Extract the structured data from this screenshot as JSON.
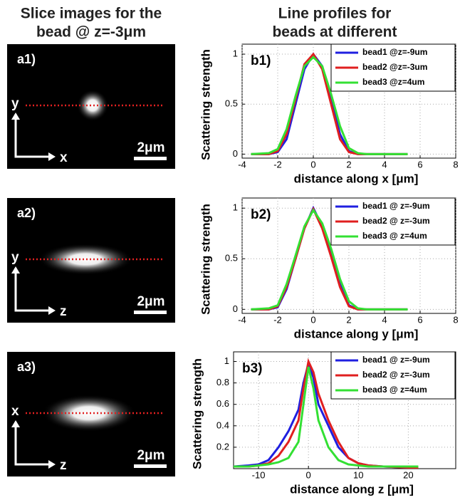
{
  "left_title": [
    "Slice images for the",
    "bead @ z=-3μm"
  ],
  "right_title": [
    "Line profiles for",
    "beads at different"
  ],
  "images": [
    {
      "label": "a1)",
      "v_axis": "y",
      "h_axis": "x",
      "scale": "2μm"
    },
    {
      "label": "a2)",
      "v_axis": "y",
      "h_axis": "z",
      "scale": "2μm"
    },
    {
      "label": "a3)",
      "v_axis": "x",
      "h_axis": "z",
      "scale": "2μm"
    }
  ],
  "chart_data": [
    {
      "type": "line",
      "panel_label": "b1)",
      "x_label": "distance along x [μm]",
      "y_label": "Scattering strength",
      "xlim": [
        -4,
        8
      ],
      "xticks": [
        -4,
        -2,
        0,
        2,
        4,
        6,
        8
      ],
      "ylim": [
        -0.04,
        1.1
      ],
      "yticks": [
        0,
        0.5,
        1
      ],
      "grid": true,
      "x": [
        -3.5,
        -2.5,
        -2,
        -1.5,
        -1,
        -0.5,
        0,
        0.5,
        1,
        1.5,
        2,
        2.5,
        3,
        4,
        5.3
      ],
      "series": [
        {
          "name": "bead1 @z=-9um",
          "color": "#1f1fe0",
          "values": [
            0,
            0,
            0.02,
            0.15,
            0.5,
            0.85,
            1,
            0.88,
            0.55,
            0.2,
            0.03,
            0,
            0,
            0,
            0
          ]
        },
        {
          "name": "bead2 @z=-3um",
          "color": "#e01f1f",
          "values": [
            0,
            0,
            0.03,
            0.2,
            0.55,
            0.9,
            1,
            0.85,
            0.5,
            0.15,
            0.02,
            0,
            0,
            0,
            0
          ]
        },
        {
          "name": "bead3 @z=4um",
          "color": "#33e033",
          "values": [
            0,
            0.01,
            0.05,
            0.25,
            0.58,
            0.88,
            0.97,
            0.88,
            0.6,
            0.28,
            0.06,
            0.01,
            0,
            0,
            0
          ]
        }
      ]
    },
    {
      "type": "line",
      "panel_label": "b2)",
      "x_label": "distance along y [μm]",
      "y_label": "Scattering strength",
      "xlim": [
        -4,
        8
      ],
      "xticks": [
        -4,
        -2,
        0,
        2,
        4,
        6,
        8
      ],
      "ylim": [
        -0.04,
        1.1
      ],
      "yticks": [
        0,
        0.5,
        1
      ],
      "grid": true,
      "x": [
        -3.5,
        -2.5,
        -2,
        -1.5,
        -1,
        -0.5,
        0,
        0.5,
        1,
        1.5,
        2,
        2.5,
        3,
        4,
        5.3
      ],
      "series": [
        {
          "name": "bead1 @ z=-9um",
          "color": "#1f1fe0",
          "values": [
            0,
            0,
            0.02,
            0.2,
            0.5,
            0.8,
            1,
            0.82,
            0.55,
            0.25,
            0.04,
            0,
            0,
            0,
            0
          ]
        },
        {
          "name": "bead2 @ z=-3um",
          "color": "#e01f1f",
          "values": [
            0,
            0,
            0.03,
            0.22,
            0.5,
            0.8,
            0.99,
            0.8,
            0.52,
            0.22,
            0.03,
            0,
            0,
            0,
            0
          ]
        },
        {
          "name": "bead3 @ z=4um",
          "color": "#33e033",
          "values": [
            0,
            0.01,
            0.04,
            0.25,
            0.53,
            0.82,
            0.98,
            0.85,
            0.6,
            0.3,
            0.08,
            0.01,
            0,
            0,
            0
          ]
        }
      ]
    },
    {
      "type": "line",
      "panel_label": "b3)",
      "x_label": "distance along z [μm]",
      "y_label": "Scattering strength",
      "xlim": [
        -15,
        29.5
      ],
      "xticks": [
        -10,
        0,
        10,
        20
      ],
      "ylim": [
        0,
        1.09
      ],
      "yticks": [
        0.2,
        0.4,
        0.6,
        0.8,
        1
      ],
      "grid": true,
      "x": [
        -15,
        -12,
        -10,
        -8,
        -6,
        -4,
        -2,
        -1,
        0,
        1,
        2,
        4,
        6,
        8,
        10,
        12,
        15,
        20,
        22
      ],
      "series": [
        {
          "name": "bead1 @ z=-9um",
          "color": "#1f1fe0",
          "values": [
            0.02,
            0.03,
            0.04,
            0.08,
            0.2,
            0.35,
            0.55,
            0.8,
            0.98,
            0.85,
            0.6,
            0.4,
            0.2,
            0.1,
            0.05,
            0.03,
            0.02,
            0.01,
            0.01
          ]
        },
        {
          "name": "bead2 @ z=-3um",
          "color": "#e01f1f",
          "values": [
            0.02,
            0.02,
            0.03,
            0.05,
            0.12,
            0.25,
            0.45,
            0.75,
            1,
            0.9,
            0.7,
            0.45,
            0.25,
            0.1,
            0.05,
            0.03,
            0.02,
            0.01,
            0.01
          ]
        },
        {
          "name": "bead3 @ z=4um",
          "color": "#33e033",
          "values": [
            0.02,
            0.02,
            0.03,
            0.04,
            0.06,
            0.1,
            0.25,
            0.6,
            0.95,
            0.75,
            0.45,
            0.2,
            0.08,
            0.04,
            0.03,
            0.02,
            0.02,
            0.02,
            0.02
          ]
        }
      ]
    }
  ]
}
